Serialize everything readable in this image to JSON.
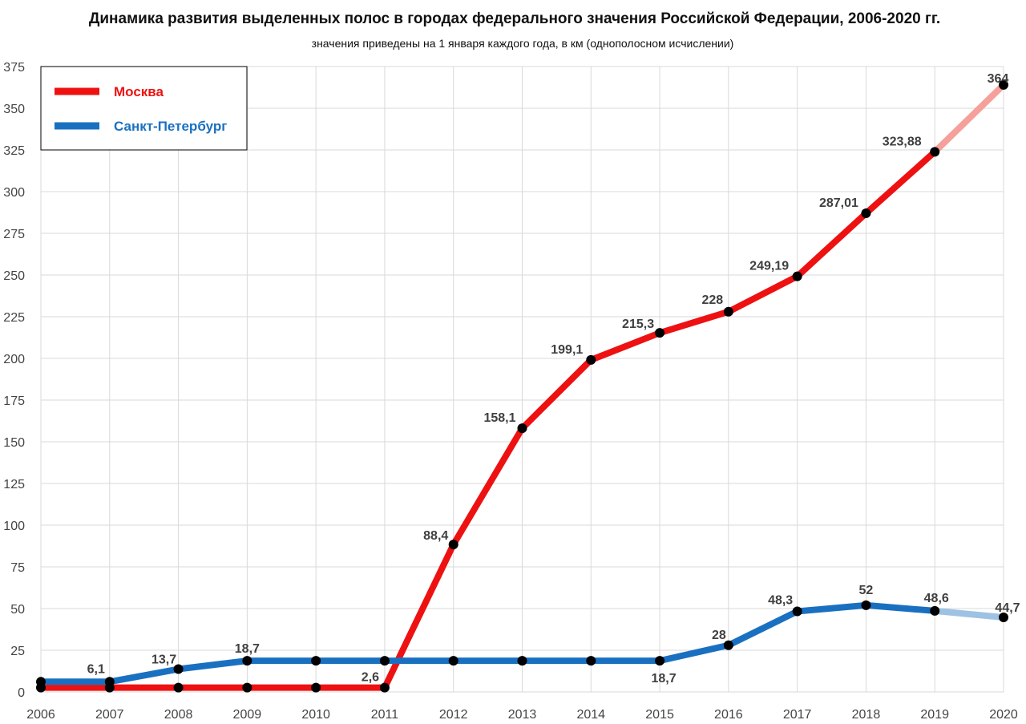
{
  "chart_data": {
    "type": "line",
    "title": "Динамика развития выделенных полос в городах федерального значения Российской Федерации, 2006-2020 гг.",
    "subtitle": "значения приведены на 1 января каждого года, в км (однополосном исчислении)",
    "xlabel": "",
    "ylabel": "",
    "ylim": [
      0,
      375
    ],
    "yticks": [
      "0",
      "25",
      "50",
      "75",
      "100",
      "125",
      "150",
      "175",
      "200",
      "225",
      "250",
      "275",
      "300",
      "325",
      "350",
      "375"
    ],
    "categories": [
      "2006",
      "2007",
      "2008",
      "2009",
      "2010",
      "2011",
      "2012",
      "2013",
      "2014",
      "2015",
      "2016",
      "2017",
      "2018",
      "2019",
      "2020"
    ],
    "grid": true,
    "legend_position": "top-left",
    "series": [
      {
        "name": "Москва",
        "color": "#ee1111",
        "projected_color": "#f5a09a",
        "values": [
          2.6,
          2.6,
          2.6,
          2.6,
          2.6,
          2.6,
          88.4,
          158.1,
          199.1,
          215.3,
          228,
          249.19,
          287.01,
          323.88,
          364
        ],
        "labels": [
          "",
          "",
          "",
          "",
          "",
          "2,6",
          "88,4",
          "158,1",
          "199,1",
          "215,3",
          "228",
          "249,19",
          "287,01",
          "323,88",
          "364"
        ]
      },
      {
        "name": "Санкт-Петербург",
        "color": "#1a70c0",
        "projected_color": "#9ec2e3",
        "values": [
          6.1,
          6.1,
          13.7,
          18.7,
          18.7,
          18.7,
          18.7,
          18.7,
          18.7,
          18.7,
          28,
          48.3,
          52,
          48.6,
          44.7
        ],
        "labels": [
          "",
          "6,1",
          "13,7",
          "18,7",
          "",
          "",
          "",
          "",
          "",
          "18,7",
          "28",
          "48,3",
          "52",
          "48,6",
          "44,7"
        ]
      }
    ]
  }
}
